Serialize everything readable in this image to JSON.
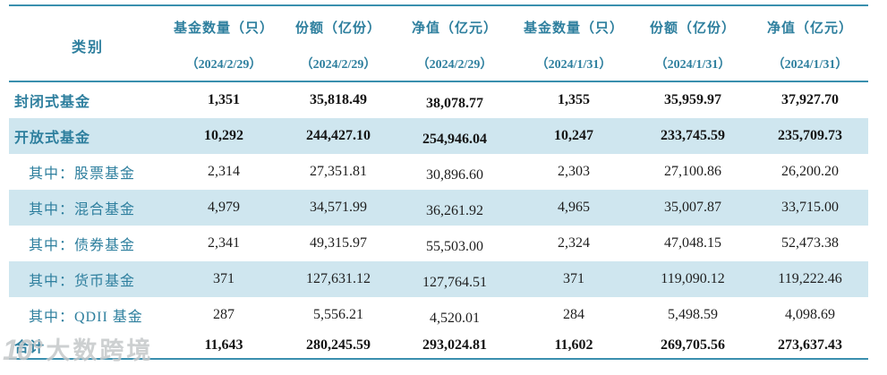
{
  "chart_data": {
    "type": "table",
    "category_header": "类别",
    "columns": [
      {
        "title": "基金数量（只）",
        "date": "（2024/2/29）"
      },
      {
        "title": "份额（亿份）",
        "date": "（2024/2/29）"
      },
      {
        "title": "净值（亿元）",
        "date": "（2024/2/29）"
      },
      {
        "title": "基金数量（只）",
        "date": "（2024/1/31）"
      },
      {
        "title": "份额（亿份）",
        "date": "（2024/1/31）"
      },
      {
        "title": "净值（亿元）",
        "date": "（2024/1/31）"
      }
    ],
    "rows": [
      {
        "label": "封闭式基金",
        "emphasis": true,
        "indent": false,
        "values": [
          "1,351",
          "35,818.49",
          "38,078.77",
          "1,355",
          "35,959.97",
          "37,927.70"
        ]
      },
      {
        "label": "开放式基金",
        "emphasis": true,
        "indent": false,
        "values": [
          "10,292",
          "244,427.10",
          "254,946.04",
          "10,247",
          "233,745.59",
          "235,709.73"
        ]
      },
      {
        "label": "其中：股票基金",
        "emphasis": false,
        "indent": true,
        "values": [
          "2,314",
          "27,351.81",
          "30,896.60",
          "2,303",
          "27,100.86",
          "26,200.20"
        ]
      },
      {
        "label": "其中：混合基金",
        "emphasis": false,
        "indent": true,
        "values": [
          "4,979",
          "34,571.99",
          "36,261.92",
          "4,965",
          "35,007.87",
          "33,715.00"
        ]
      },
      {
        "label": "其中：债券基金",
        "emphasis": false,
        "indent": true,
        "values": [
          "2,341",
          "49,315.97",
          "55,503.00",
          "2,324",
          "47,048.15",
          "52,473.38"
        ]
      },
      {
        "label": "其中：货币基金",
        "emphasis": false,
        "indent": true,
        "values": [
          "371",
          "127,631.12",
          "127,764.51",
          "371",
          "119,090.12",
          "119,222.46"
        ]
      },
      {
        "label": "其中：QDII 基金",
        "emphasis": false,
        "indent": true,
        "values": [
          "287",
          "5,556.21",
          "4,520.01",
          "284",
          "5,498.59",
          "4,098.69"
        ]
      },
      {
        "label": "合计",
        "emphasis": true,
        "indent": false,
        "values": [
          "11,643",
          "280,245.59",
          "293,024.81",
          "11,602",
          "269,705.56",
          "273,637.43"
        ]
      }
    ]
  },
  "watermark": {
    "logo": "10°",
    "text": "大数跨境"
  },
  "colors": {
    "accent_text": "#2e7f9e",
    "border": "#3a8fae",
    "row_shade": "#cfe6ef",
    "number_text": "#1e1e1e",
    "watermark_gray": "#c5c8ca"
  }
}
